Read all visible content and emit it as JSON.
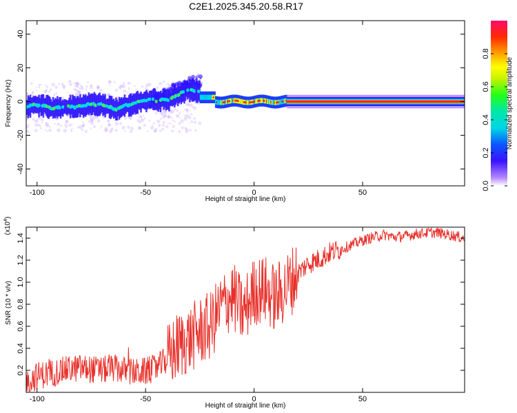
{
  "title": "C2E1.2025.345.20.58.R17",
  "chart_data": [
    {
      "type": "heatmap",
      "name": "spectrogram",
      "xlabel": "Height of straight line (km)",
      "ylabel": "Frequency (Hz)",
      "xlim": [
        -105,
        97
      ],
      "ylim": [
        -50,
        48
      ],
      "xticks": [
        "-100",
        "-50",
        "0",
        "50"
      ],
      "xtick_values": [
        -100,
        -50,
        0,
        50
      ],
      "yticks": [
        "40",
        "20",
        "0",
        "-20",
        "-40"
      ],
      "ytick_values": [
        40,
        20,
        0,
        -20,
        -40
      ],
      "colorbar": {
        "label": "Normalized spectral amplitude",
        "range": [
          0.0,
          1.0
        ],
        "ticks": [
          "0.0",
          "0.2",
          "0.4",
          "0.6",
          "0.8"
        ],
        "tick_values": [
          0.0,
          0.2,
          0.4,
          0.6,
          0.8
        ]
      },
      "description_segments": [
        {
          "x_from": -105,
          "x_to": -28,
          "freq_center": -3,
          "note": "scattered blue-cyan energy with noise"
        },
        {
          "x_from": -45,
          "x_to": -25,
          "freq_center": 8,
          "note": "rising purple/blue feature up to ~20 Hz"
        },
        {
          "x_from": -20,
          "x_to": 15,
          "freq_center": 0,
          "note": "red-yellow tone segments"
        },
        {
          "x_from": 15,
          "x_to": 97,
          "freq_center": 0,
          "note": "continuous red tone near 0 Hz"
        }
      ]
    },
    {
      "type": "line",
      "name": "snr",
      "xlabel": "Height of straight line (km)",
      "ylabel": "SNR (10 * v/v)",
      "yscale_label": "(x10",
      "yscale_exp": "4",
      "yscale_close": ")",
      "xlim": [
        -105,
        97
      ],
      "ylim": [
        0.0,
        1.5
      ],
      "xticks": [
        "-100",
        "-50",
        "0",
        "50"
      ],
      "xtick_values": [
        -100,
        -50,
        0,
        50
      ],
      "yticks": [
        "0.2",
        "0.4",
        "0.6",
        "0.8",
        "1.0",
        "1.2",
        "1.4"
      ],
      "ytick_values": [
        0.2,
        0.4,
        0.6,
        0.8,
        1.0,
        1.2,
        1.4
      ],
      "color": "#e8302a",
      "series": [
        {
          "name": "SNR",
          "x": [
            -105,
            -100,
            -95,
            -90,
            -85,
            -80,
            -75,
            -70,
            -65,
            -60,
            -55,
            -50,
            -45,
            -40,
            -35,
            -30,
            -25,
            -20,
            -15,
            -10,
            -5,
            0,
            5,
            10,
            15,
            20,
            25,
            30,
            35,
            40,
            45,
            50,
            55,
            60,
            65,
            70,
            75,
            80,
            85,
            90,
            97
          ],
          "values": [
            0.08,
            0.15,
            0.17,
            0.19,
            0.21,
            0.22,
            0.21,
            0.2,
            0.22,
            0.2,
            0.18,
            0.19,
            0.22,
            0.3,
            0.42,
            0.48,
            0.55,
            0.6,
            0.78,
            0.88,
            0.72,
            0.92,
            0.93,
            0.85,
            0.96,
            1.08,
            1.17,
            1.21,
            1.27,
            1.3,
            1.34,
            1.38,
            1.41,
            1.43,
            1.41,
            1.42,
            1.44,
            1.45,
            1.45,
            1.43,
            1.4
          ]
        }
      ]
    }
  ]
}
